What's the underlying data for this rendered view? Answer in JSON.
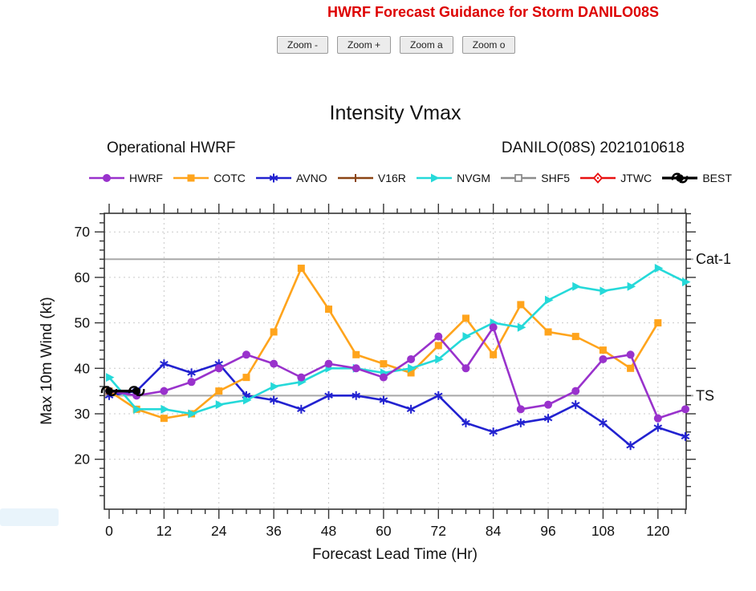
{
  "page": {
    "title": "HWRF Forecast Guidance for Storm DANILO08S"
  },
  "toolbar": {
    "buttons": [
      {
        "label": "Zoom -"
      },
      {
        "label": "Zoom +"
      },
      {
        "label": "Zoom a"
      },
      {
        "label": "Zoom o"
      }
    ]
  },
  "chart_data": {
    "type": "line",
    "title": "Intensity Vmax",
    "subtitle_left": "Operational HWRF",
    "subtitle_right": "DANILO(08S) 2021010618",
    "xlabel": "Forecast Lead Time (Hr)",
    "ylabel": "Max 10m Wind (kt)",
    "xlim": [
      0,
      126
    ],
    "ylim": [
      10,
      74
    ],
    "x_ticks": [
      0,
      12,
      24,
      36,
      48,
      60,
      72,
      84,
      96,
      108,
      120
    ],
    "x_minor_step": 3,
    "y_ticks": [
      20,
      30,
      40,
      50,
      60,
      70
    ],
    "y_minor_step": 2,
    "grid": {
      "vertical_every_hr": 12,
      "horizontal_every_kt": 10,
      "style": "dashed"
    },
    "legend_position": "top",
    "ref_lines": [
      {
        "value": 64,
        "label": "Cat-1",
        "color": "#a8a8a8"
      },
      {
        "value": 34,
        "label": "TS",
        "color": "#a8a8a8"
      }
    ],
    "series": [
      {
        "name": "HWRF",
        "color": "#9932cc",
        "marker": "circle",
        "hours": [
          0,
          6,
          12,
          18,
          24,
          30,
          36,
          42,
          48,
          54,
          60,
          66,
          72,
          78,
          84,
          90,
          96,
          102,
          108,
          114,
          120,
          126
        ],
        "values": [
          35,
          34,
          35,
          37,
          40,
          43,
          41,
          38,
          41,
          40,
          38,
          42,
          47,
          40,
          49,
          31,
          32,
          35,
          42,
          43,
          29,
          31
        ]
      },
      {
        "name": "COTC",
        "color": "#ffa41c",
        "marker": "square",
        "hours": [
          0,
          6,
          12,
          18,
          24,
          30,
          36,
          42,
          48,
          54,
          60,
          66,
          72,
          78,
          84,
          90,
          96,
          102,
          108,
          114,
          120
        ],
        "values": [
          35,
          31,
          29,
          30,
          35,
          38,
          48,
          62,
          53,
          43,
          41,
          39,
          45,
          51,
          43,
          54,
          48,
          47,
          44,
          40,
          50
        ]
      },
      {
        "name": "AVNO",
        "color": "#2222d0",
        "marker": "asterisk",
        "hours": [
          0,
          6,
          12,
          18,
          24,
          30,
          36,
          42,
          48,
          54,
          60,
          66,
          72,
          78,
          84,
          90,
          96,
          102,
          108,
          114,
          120,
          126
        ],
        "values": [
          34,
          35,
          41,
          39,
          41,
          34,
          33,
          31,
          34,
          34,
          33,
          31,
          34,
          28,
          26,
          28,
          29,
          32,
          28,
          23,
          27,
          25
        ]
      },
      {
        "name": "V16R",
        "color": "#8b4513",
        "marker": "plus",
        "hours": [],
        "values": []
      },
      {
        "name": "NVGM",
        "color": "#25d9d9",
        "marker": "triangle-right",
        "hours": [
          0,
          6,
          12,
          18,
          24,
          30,
          36,
          42,
          48,
          54,
          60,
          66,
          72,
          78,
          84,
          90,
          96,
          102,
          108,
          114,
          120,
          126
        ],
        "values": [
          38,
          31,
          31,
          30,
          32,
          33,
          36,
          37,
          40,
          40,
          39,
          40,
          42,
          47,
          50,
          49,
          55,
          58,
          57,
          58,
          62,
          59
        ]
      },
      {
        "name": "SHF5",
        "color": "#8c8c8c",
        "marker": "square-open",
        "hours": [],
        "values": []
      },
      {
        "name": "JTWC",
        "color": "#e81010",
        "marker": "diamond-open",
        "hours": [],
        "values": []
      },
      {
        "name": "BEST",
        "color": "#000000",
        "marker": "hurricane",
        "hours": [
          0,
          6
        ],
        "values": [
          35,
          35
        ]
      }
    ]
  }
}
